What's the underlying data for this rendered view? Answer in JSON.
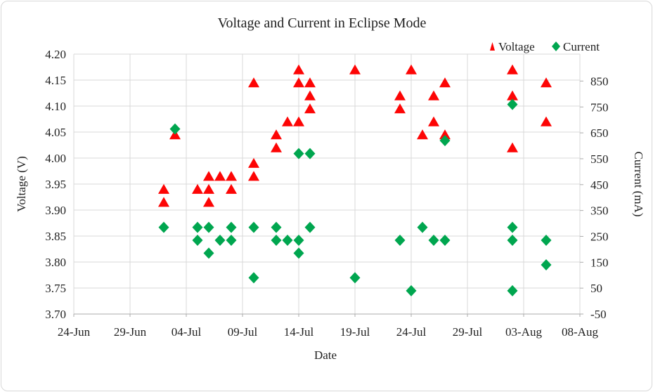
{
  "chart_data": {
    "type": "scatter",
    "title": "Voltage and Current in Eclipse Mode",
    "xlabel": "Date",
    "ylabel_left": "Voltage (V)",
    "ylabel_right": "Current (mA)",
    "grid": true,
    "legend_position": "top-right",
    "x_axis": {
      "tick_labels": [
        "24-Jun",
        "29-Jun",
        "04-Jul",
        "09-Jul",
        "14-Jul",
        "19-Jul",
        "24-Jul",
        "29-Jul",
        "03-Aug",
        "08-Aug"
      ],
      "tick_days": [
        0,
        5,
        10,
        15,
        20,
        25,
        30,
        35,
        40,
        45
      ]
    },
    "y_left_axis": {
      "min": 3.7,
      "max": 4.2,
      "tick_labels": [
        "4.20",
        "4.15",
        "4.10",
        "4.05",
        "4.00",
        "3.95",
        "3.90",
        "3.85",
        "3.80",
        "3.75",
        "3.70"
      ],
      "tick_values": [
        4.2,
        4.15,
        4.1,
        4.05,
        4.0,
        3.95,
        3.9,
        3.85,
        3.8,
        3.75,
        3.7
      ]
    },
    "y_right_axis": {
      "min": -50,
      "max": 900,
      "tick_labels": [
        "850",
        "750",
        "650",
        "550",
        "450",
        "350",
        "250",
        "150",
        "50",
        "-50"
      ],
      "tick_values": [
        850,
        750,
        650,
        550,
        450,
        350,
        250,
        150,
        50,
        -50
      ]
    },
    "series": [
      {
        "name": "Voltage",
        "marker": "triangle",
        "color": "#fd0505",
        "axis": "left",
        "points": [
          {
            "date": "02-Jul",
            "day": 8,
            "value": 3.94
          },
          {
            "date": "02-Jul",
            "day": 8,
            "value": 3.915
          },
          {
            "date": "03-Jul",
            "day": 9,
            "value": 4.045
          },
          {
            "date": "05-Jul",
            "day": 11,
            "value": 3.94
          },
          {
            "date": "06-Jul",
            "day": 12,
            "value": 3.965
          },
          {
            "date": "06-Jul",
            "day": 12,
            "value": 3.94
          },
          {
            "date": "06-Jul",
            "day": 12,
            "value": 3.915
          },
          {
            "date": "07-Jul",
            "day": 13,
            "value": 3.965
          },
          {
            "date": "08-Jul",
            "day": 14,
            "value": 3.965
          },
          {
            "date": "08-Jul",
            "day": 14,
            "value": 3.94
          },
          {
            "date": "10-Jul",
            "day": 16,
            "value": 4.145
          },
          {
            "date": "10-Jul",
            "day": 16,
            "value": 3.99
          },
          {
            "date": "10-Jul",
            "day": 16,
            "value": 3.965
          },
          {
            "date": "12-Jul",
            "day": 18,
            "value": 4.045
          },
          {
            "date": "12-Jul",
            "day": 18,
            "value": 4.02
          },
          {
            "date": "13-Jul",
            "day": 19,
            "value": 4.07
          },
          {
            "date": "14-Jul",
            "day": 20,
            "value": 4.17
          },
          {
            "date": "14-Jul",
            "day": 20,
            "value": 4.145
          },
          {
            "date": "14-Jul",
            "day": 20,
            "value": 4.07
          },
          {
            "date": "15-Jul",
            "day": 21,
            "value": 4.145
          },
          {
            "date": "15-Jul",
            "day": 21,
            "value": 4.12
          },
          {
            "date": "15-Jul",
            "day": 21,
            "value": 4.095
          },
          {
            "date": "19-Jul",
            "day": 25,
            "value": 4.17
          },
          {
            "date": "23-Jul",
            "day": 29,
            "value": 4.12
          },
          {
            "date": "23-Jul",
            "day": 29,
            "value": 4.095
          },
          {
            "date": "24-Jul",
            "day": 30,
            "value": 4.17
          },
          {
            "date": "25-Jul",
            "day": 31,
            "value": 4.045
          },
          {
            "date": "26-Jul",
            "day": 32,
            "value": 4.12
          },
          {
            "date": "26-Jul",
            "day": 32,
            "value": 4.07
          },
          {
            "date": "27-Jul",
            "day": 33,
            "value": 4.145
          },
          {
            "date": "27-Jul",
            "day": 33,
            "value": 4.045
          },
          {
            "date": "02-Aug",
            "day": 39,
            "value": 4.17
          },
          {
            "date": "02-Aug",
            "day": 39,
            "value": 4.12
          },
          {
            "date": "02-Aug",
            "day": 39,
            "value": 4.02
          },
          {
            "date": "05-Aug",
            "day": 42,
            "value": 4.145
          },
          {
            "date": "05-Aug",
            "day": 42,
            "value": 4.07
          }
        ]
      },
      {
        "name": "Current",
        "marker": "diamond",
        "color": "#00a64f",
        "axis": "right",
        "points": [
          {
            "date": "02-Jul",
            "day": 8,
            "value": 285
          },
          {
            "date": "03-Jul",
            "day": 9,
            "value": 665
          },
          {
            "date": "05-Jul",
            "day": 11,
            "value": 285
          },
          {
            "date": "05-Jul",
            "day": 11,
            "value": 235
          },
          {
            "date": "06-Jul",
            "day": 12,
            "value": 285
          },
          {
            "date": "06-Jul",
            "day": 12,
            "value": 185
          },
          {
            "date": "07-Jul",
            "day": 13,
            "value": 235
          },
          {
            "date": "08-Jul",
            "day": 14,
            "value": 285
          },
          {
            "date": "08-Jul",
            "day": 14,
            "value": 235
          },
          {
            "date": "10-Jul",
            "day": 16,
            "value": 285
          },
          {
            "date": "10-Jul",
            "day": 16,
            "value": 90
          },
          {
            "date": "12-Jul",
            "day": 18,
            "value": 285
          },
          {
            "date": "12-Jul",
            "day": 18,
            "value": 235
          },
          {
            "date": "13-Jul",
            "day": 19,
            "value": 235
          },
          {
            "date": "14-Jul",
            "day": 20,
            "value": 570
          },
          {
            "date": "14-Jul",
            "day": 20,
            "value": 235
          },
          {
            "date": "14-Jul",
            "day": 20,
            "value": 185
          },
          {
            "date": "15-Jul",
            "day": 21,
            "value": 570
          },
          {
            "date": "15-Jul",
            "day": 21,
            "value": 285
          },
          {
            "date": "19-Jul",
            "day": 25,
            "value": 90
          },
          {
            "date": "23-Jul",
            "day": 29,
            "value": 235
          },
          {
            "date": "24-Jul",
            "day": 30,
            "value": 40
          },
          {
            "date": "25-Jul",
            "day": 31,
            "value": 285
          },
          {
            "date": "26-Jul",
            "day": 32,
            "value": 235
          },
          {
            "date": "27-Jul",
            "day": 33,
            "value": 620
          },
          {
            "date": "27-Jul",
            "day": 33,
            "value": 235
          },
          {
            "date": "02-Aug",
            "day": 39,
            "value": 760
          },
          {
            "date": "02-Aug",
            "day": 39,
            "value": 285
          },
          {
            "date": "02-Aug",
            "day": 39,
            "value": 235
          },
          {
            "date": "02-Aug",
            "day": 39,
            "value": 40
          },
          {
            "date": "05-Aug",
            "day": 42,
            "value": 235
          },
          {
            "date": "05-Aug",
            "day": 42,
            "value": 140
          }
        ]
      }
    ],
    "colors": {
      "gridline": "#d9d9d9",
      "axis_line": "#ababab",
      "text": "#1f1f1f"
    }
  }
}
